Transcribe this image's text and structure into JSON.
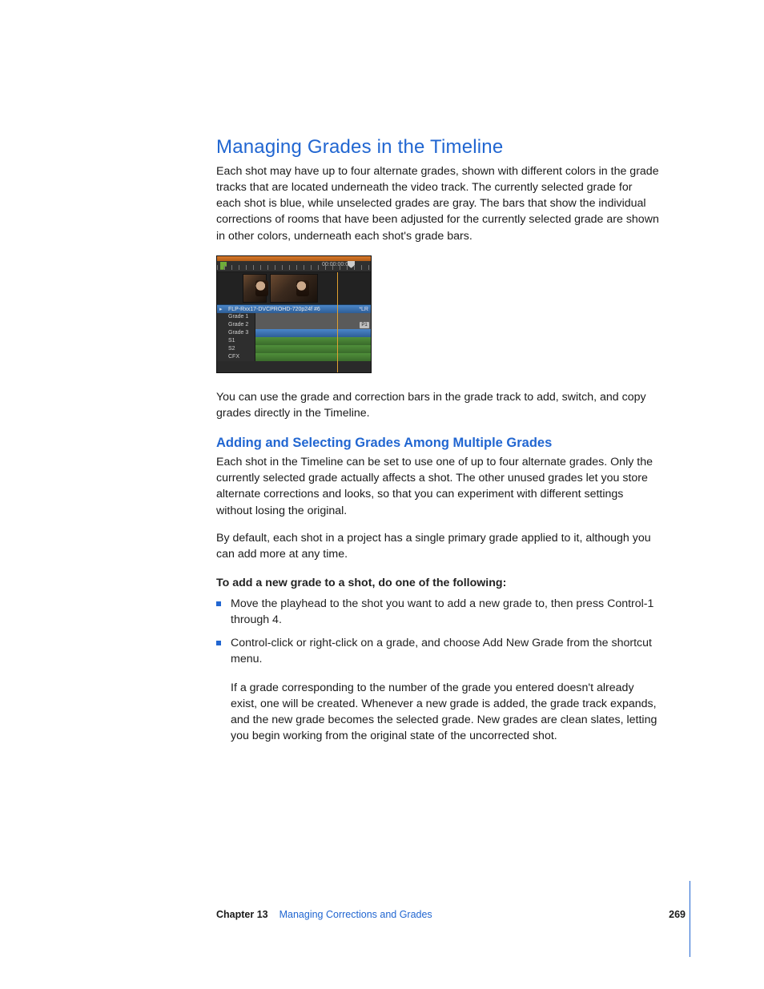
{
  "h1": "Managing Grades in the Timeline",
  "p1": "Each shot may have up to four alternate grades, shown with different colors in the grade tracks that are located underneath the video track. The currently selected grade for each shot is blue, while unselected grades are gray. The bars that show the individual corrections of rooms that have been adjusted for the currently selected grade are shown in other colors, underneath each shot's grade bars.",
  "fig": {
    "timecode": "00:00:00:00",
    "clip_label": "FLP-Rxx17-DVCPROHD-720p24f #6",
    "clip_right": "*LR",
    "rows": [
      {
        "label": "Grade 1",
        "kind": "gray",
        "pill": ""
      },
      {
        "label": "Grade 2",
        "kind": "gray",
        "pill": "P1"
      },
      {
        "label": "Grade 3",
        "kind": "blue",
        "pill": ""
      },
      {
        "label": "S1",
        "kind": "green",
        "pill": ""
      },
      {
        "label": "S2",
        "kind": "green",
        "pill": ""
      },
      {
        "label": "CFX",
        "kind": "green",
        "pill": ""
      }
    ],
    "colors": {
      "orange_bar": "#d8792a",
      "blue_bar": "#4a86c9",
      "gray_bar": "#5a5a5a",
      "green_bar": "#4f8f3a",
      "bg": "#2a2a2a"
    }
  },
  "p2": "You can use the grade and correction bars in the grade track to add, switch, and copy grades directly in the Timeline.",
  "h2": "Adding and Selecting Grades Among Multiple Grades",
  "p3": "Each shot in the Timeline can be set to use one of up to four alternate grades. Only the currently selected grade actually affects a shot. The other unused grades let you store alternate corrections and looks, so that you can experiment with different settings without losing the original.",
  "p4": "By default, each shot in a project has a single primary grade applied to it, although you can add more at any time.",
  "lead": "To add a new grade to a shot, do one of the following:",
  "bullets": [
    "Move the playhead to the shot you want to add a new grade to, then press Control-1 through 4.",
    "Control-click or right-click on a grade, and choose Add New Grade from the shortcut menu."
  ],
  "p5": "If a grade corresponding to the number of the grade you entered doesn't already exist, one will be created. Whenever a new grade is added, the grade track expands, and the new grade becomes the selected grade. New grades are clean slates, letting you begin working from the original state of the uncorrected shot.",
  "footer": {
    "chapter": "Chapter 13",
    "title": "Managing Corrections and Grades",
    "page": "269"
  }
}
